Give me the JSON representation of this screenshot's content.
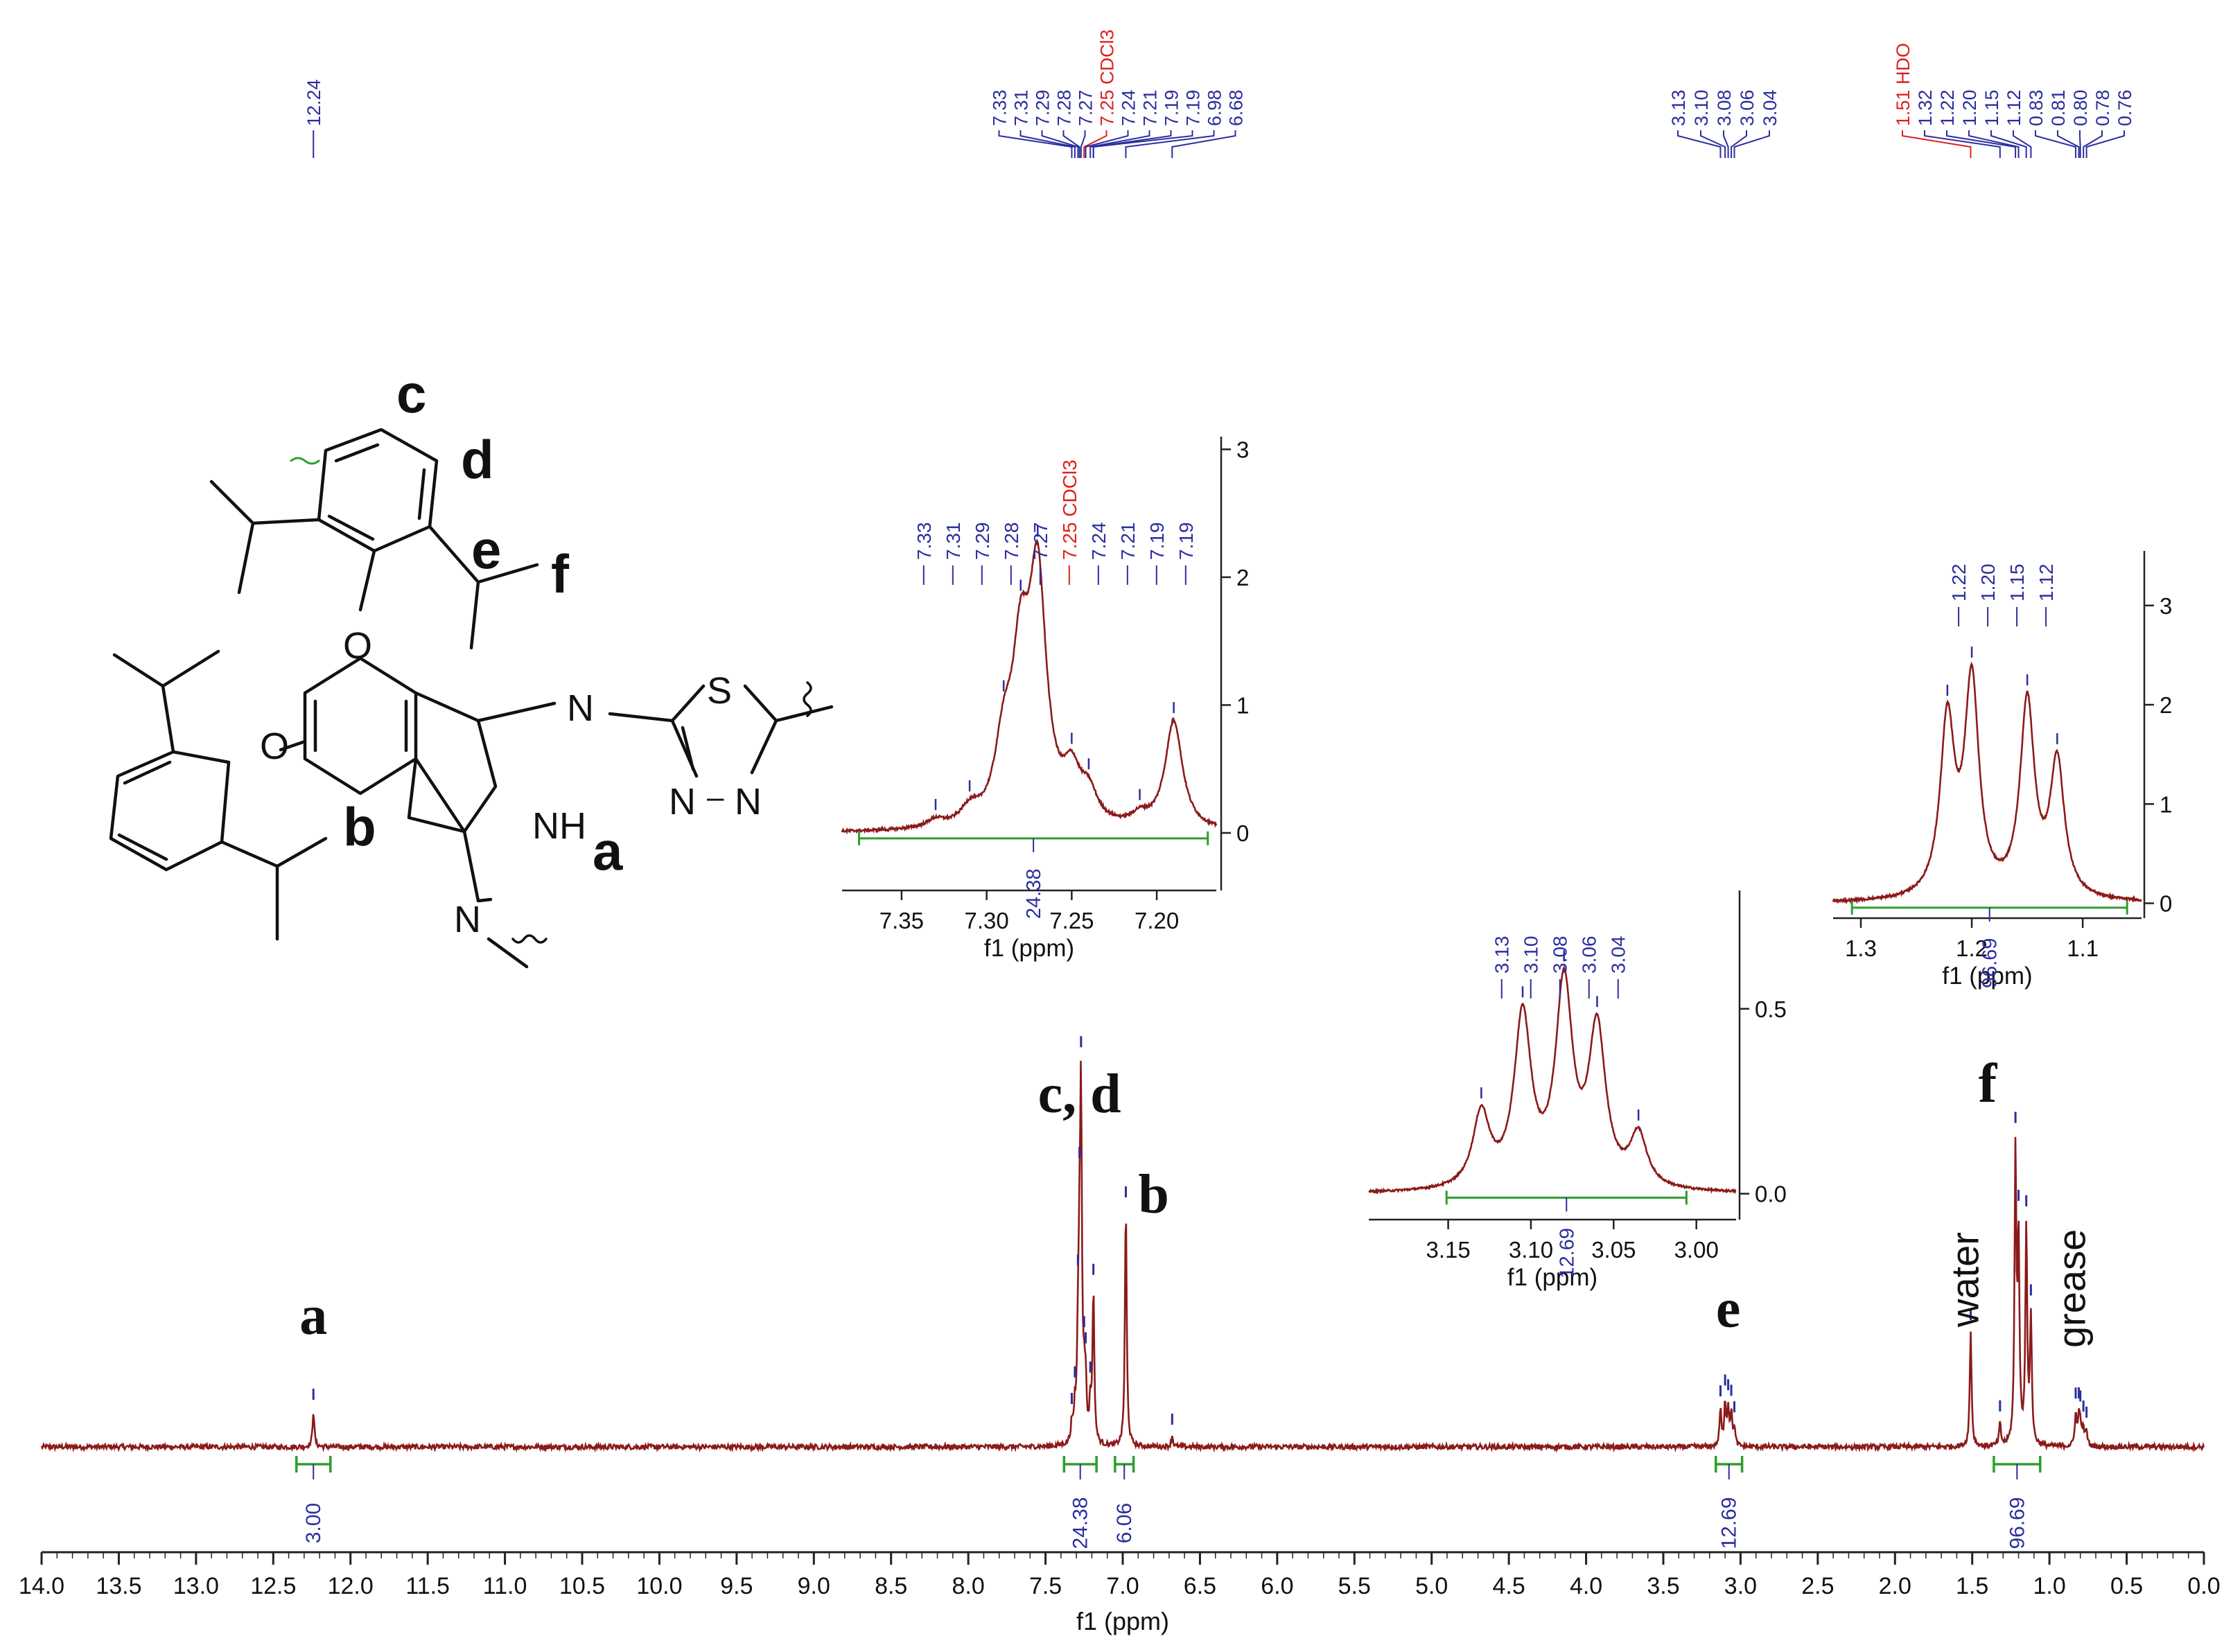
{
  "colors": {
    "spectrum": "#8B1A1A",
    "peak_label": "#2B2E9E",
    "solvent_label": "#E01F1F",
    "integral": "#2E9E2E",
    "axis": "#222222",
    "text": "#111111"
  },
  "chart_data": [
    {
      "id": "main",
      "type": "line",
      "title": "",
      "xlabel": "f1 (ppm)",
      "ylabel": "",
      "x_reversed": true,
      "xlim": [
        0.0,
        14.0
      ],
      "xticks": [
        "14.0",
        "13.5",
        "13.0",
        "12.5",
        "12.0",
        "11.5",
        "11.0",
        "10.5",
        "10.0",
        "9.5",
        "9.0",
        "8.5",
        "8.0",
        "7.5",
        "7.0",
        "6.5",
        "6.0",
        "5.5",
        "5.0",
        "4.5",
        "4.0",
        "3.5",
        "3.0",
        "2.5",
        "2.0",
        "1.5",
        "1.0",
        "0.5",
        "0.0"
      ],
      "peaks": [
        {
          "ppm": 12.24,
          "h": 0.1
        },
        {
          "ppm": 7.33,
          "h": 0.05
        },
        {
          "ppm": 7.31,
          "h": 0.08
        },
        {
          "ppm": 7.29,
          "h": 0.23
        },
        {
          "ppm": 7.28,
          "h": 0.38
        },
        {
          "ppm": 7.27,
          "h": 0.9
        },
        {
          "ppm": 7.25,
          "h": 0.12
        },
        {
          "ppm": 7.24,
          "h": 0.14
        },
        {
          "ppm": 7.21,
          "h": 0.1
        },
        {
          "ppm": 7.19,
          "h": 0.42
        },
        {
          "ppm": 6.98,
          "h": 0.66
        },
        {
          "ppm": 6.68,
          "h": 0.03
        },
        {
          "ppm": 3.13,
          "h": 0.1
        },
        {
          "ppm": 3.1,
          "h": 0.12
        },
        {
          "ppm": 3.08,
          "h": 0.1
        },
        {
          "ppm": 3.06,
          "h": 0.09
        },
        {
          "ppm": 3.04,
          "h": 0.05
        },
        {
          "ppm": 1.51,
          "h": 0.32
        },
        {
          "ppm": 1.32,
          "h": 0.06
        },
        {
          "ppm": 1.22,
          "h": 0.8
        },
        {
          "ppm": 1.2,
          "h": 0.55
        },
        {
          "ppm": 1.15,
          "h": 0.6
        },
        {
          "ppm": 1.12,
          "h": 0.35
        },
        {
          "ppm": 0.83,
          "h": 0.09
        },
        {
          "ppm": 0.81,
          "h": 0.07
        },
        {
          "ppm": 0.8,
          "h": 0.06
        },
        {
          "ppm": 0.78,
          "h": 0.05
        },
        {
          "ppm": 0.76,
          "h": 0.04
        }
      ],
      "integrals": [
        {
          "from": 12.35,
          "to": 12.13,
          "label": "3.00"
        },
        {
          "from": 7.38,
          "to": 7.17,
          "label": "24.38"
        },
        {
          "from": 7.05,
          "to": 6.93,
          "label": "6.06"
        },
        {
          "from": 3.16,
          "to": 2.99,
          "label": "12.69"
        },
        {
          "from": 1.36,
          "to": 1.06,
          "label": "96.69"
        }
      ],
      "assignments": [
        {
          "label": "a",
          "ppm": 12.24,
          "rotated": false
        },
        {
          "label": "c, d",
          "ppm": 7.28,
          "rotated": false
        },
        {
          "label": "b",
          "ppm": 6.8,
          "rotated": false
        },
        {
          "label": "e",
          "ppm": 3.08,
          "rotated": false
        },
        {
          "label": "f",
          "ppm": 1.4,
          "rotated": false
        },
        {
          "label": "water",
          "ppm": 1.55,
          "rotated": true
        },
        {
          "label": "grease",
          "ppm": 0.86,
          "rotated": true
        }
      ]
    },
    {
      "id": "inset1",
      "type": "line",
      "title": "",
      "xlabel": "f1 (ppm)",
      "ylabel": "",
      "x_reversed": true,
      "xlim": [
        7.165,
        7.385
      ],
      "ylim": [
        -0.45,
        3.1
      ],
      "xticks": [
        "7.35",
        "7.30",
        "7.25",
        "7.20"
      ],
      "yticks": [
        "0",
        "1",
        "2",
        "3"
      ],
      "baseline": 0.0,
      "peaks": [
        {
          "ppm": 7.33,
          "h": 0.06
        },
        {
          "ppm": 7.31,
          "h": 0.12
        },
        {
          "ppm": 7.29,
          "h": 0.55
        },
        {
          "ppm": 7.28,
          "h": 1.15
        },
        {
          "ppm": 7.27,
          "h": 1.85
        },
        {
          "ppm": 7.25,
          "h": 0.35
        },
        {
          "ppm": 7.24,
          "h": 0.22
        },
        {
          "ppm": 7.21,
          "h": 0.08
        },
        {
          "ppm": 7.19,
          "h": 0.85
        }
      ],
      "peak_labels": [
        "7.33",
        "7.31",
        "7.29",
        "7.28",
        "7.27",
        "7.25 CDCl3",
        "7.24",
        "7.21",
        "7.19",
        "7.19"
      ],
      "integral": {
        "from": 7.375,
        "to": 7.17,
        "label": "24.38"
      }
    },
    {
      "id": "inset2",
      "type": "line",
      "title": "",
      "xlabel": "f1 (ppm)",
      "ylabel": "",
      "x_reversed": true,
      "xlim": [
        2.976,
        3.198
      ],
      "ylim": [
        -0.07,
        0.82
      ],
      "xticks": [
        "3.15",
        "3.10",
        "3.05",
        "3.00"
      ],
      "yticks": [
        "0.0",
        "0.5"
      ],
      "baseline": 0.0,
      "peaks": [
        {
          "ppm": 3.13,
          "h": 0.2
        },
        {
          "ppm": 3.105,
          "h": 0.46
        },
        {
          "ppm": 3.08,
          "h": 0.54
        },
        {
          "ppm": 3.06,
          "h": 0.42
        },
        {
          "ppm": 3.035,
          "h": 0.14
        }
      ],
      "peak_labels": [
        "3.13",
        "3.10",
        "3.08",
        "3.06",
        "3.04"
      ],
      "integral": {
        "from": 3.151,
        "to": 3.006,
        "label": "12.69"
      }
    },
    {
      "id": "inset3",
      "type": "line",
      "title": "",
      "xlabel": "f1 (ppm)",
      "ylabel": "",
      "x_reversed": true,
      "xlim": [
        1.047,
        1.325
      ],
      "ylim": [
        -0.15,
        3.55
      ],
      "xticks": [
        "1.3",
        "1.2",
        "1.1"
      ],
      "yticks": [
        "0",
        "1",
        "2",
        "3"
      ],
      "baseline": 0.0,
      "peaks": [
        {
          "ppm": 1.222,
          "h": 1.75
        },
        {
          "ppm": 1.2,
          "h": 2.15
        },
        {
          "ppm": 1.15,
          "h": 1.95
        },
        {
          "ppm": 1.123,
          "h": 1.35
        }
      ],
      "peak_labels": [
        "1.22",
        "1.20",
        "1.15",
        "1.12"
      ],
      "integral": {
        "from": 1.308,
        "to": 1.06,
        "label": "96.69"
      }
    }
  ],
  "top_labels": {
    "single": [
      "12.24"
    ],
    "aromatic": [
      "7.33",
      "7.31",
      "7.29",
      "7.28",
      "7.27",
      "7.25 CDCl3",
      "7.24",
      "7.21",
      "7.19",
      "7.19",
      "6.98",
      "6.68"
    ],
    "methine": [
      "3.13",
      "3.10",
      "3.08",
      "3.06",
      "3.04"
    ],
    "aliphatic": [
      "1.51 HDO",
      "1.32",
      "1.22",
      "1.20",
      "1.15",
      "1.12",
      "0.83",
      "0.81",
      "0.80",
      "0.78",
      "0.76"
    ]
  },
  "structure": {
    "labels": [
      "c",
      "d",
      "e",
      "f",
      "b",
      "a"
    ],
    "atoms": [
      "O",
      "O",
      "N",
      "S",
      "N",
      "N",
      "NH",
      "N"
    ]
  }
}
